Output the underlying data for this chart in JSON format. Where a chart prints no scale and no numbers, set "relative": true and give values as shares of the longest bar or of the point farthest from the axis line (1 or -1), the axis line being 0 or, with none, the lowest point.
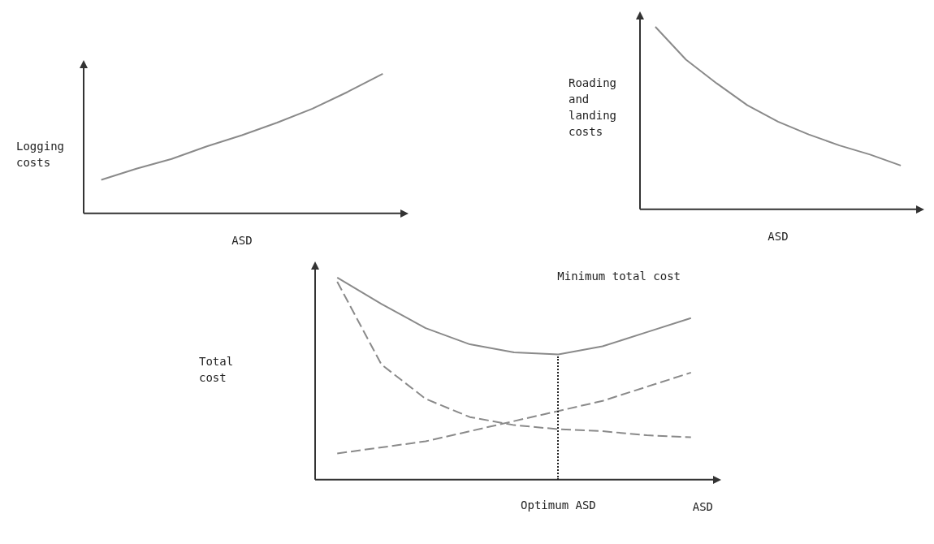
{
  "chart_data": [
    {
      "type": "line",
      "relative": true,
      "ylabel": "Logging\ncosts",
      "xlabel": "ASD",
      "categories": [
        null,
        null,
        null,
        null,
        null,
        null,
        null,
        null,
        null
      ],
      "grid": false,
      "legend": false,
      "marker": "none",
      "series": [
        {
          "color": "#8a8a8a",
          "line_style": "solid",
          "values": [
            0.24,
            0.32,
            0.39,
            0.48,
            0.56,
            0.65,
            0.75,
            0.87,
            1
          ]
        }
      ]
    },
    {
      "type": "line",
      "relative": true,
      "ylabel": "Roading and\nlanding\ncosts",
      "xlabel": "ASD",
      "categories": [
        null,
        null,
        null,
        null,
        null,
        null,
        null,
        null,
        null
      ],
      "grid": false,
      "legend": false,
      "marker": "none",
      "series": [
        {
          "color": "#8a8a8a",
          "line_style": "solid",
          "values": [
            1,
            0.82,
            0.69,
            0.57,
            0.48,
            0.41,
            0.35,
            0.3,
            0.24
          ]
        }
      ]
    },
    {
      "type": "line",
      "relative": true,
      "ylabel": "Total cost",
      "xlabel": "ASD",
      "categories": [
        null,
        null,
        null,
        null,
        null,
        null,
        null,
        null,
        null
      ],
      "grid": false,
      "legend": false,
      "marker": "none",
      "annotations": [
        "Minimum total cost",
        "Optimum ASD"
      ],
      "series": [
        {
          "color": "#8a8a8a",
          "line_style": "solid",
          "values": [
            1,
            0.87,
            0.75,
            0.67,
            0.63,
            0.62,
            0.66,
            0.73,
            0.8
          ]
        },
        {
          "color": "#8a8a8a",
          "line_style": "dashed",
          "values": [
            0.98,
            0.57,
            0.4,
            0.31,
            0.27,
            0.25,
            0.24,
            0.22,
            0.21
          ]
        },
        {
          "color": "#8a8a8a",
          "line_style": "dashed",
          "values": [
            0.13,
            0.16,
            0.19,
            0.24,
            0.29,
            0.34,
            0.39,
            0.46,
            0.53
          ]
        }
      ]
    }
  ]
}
